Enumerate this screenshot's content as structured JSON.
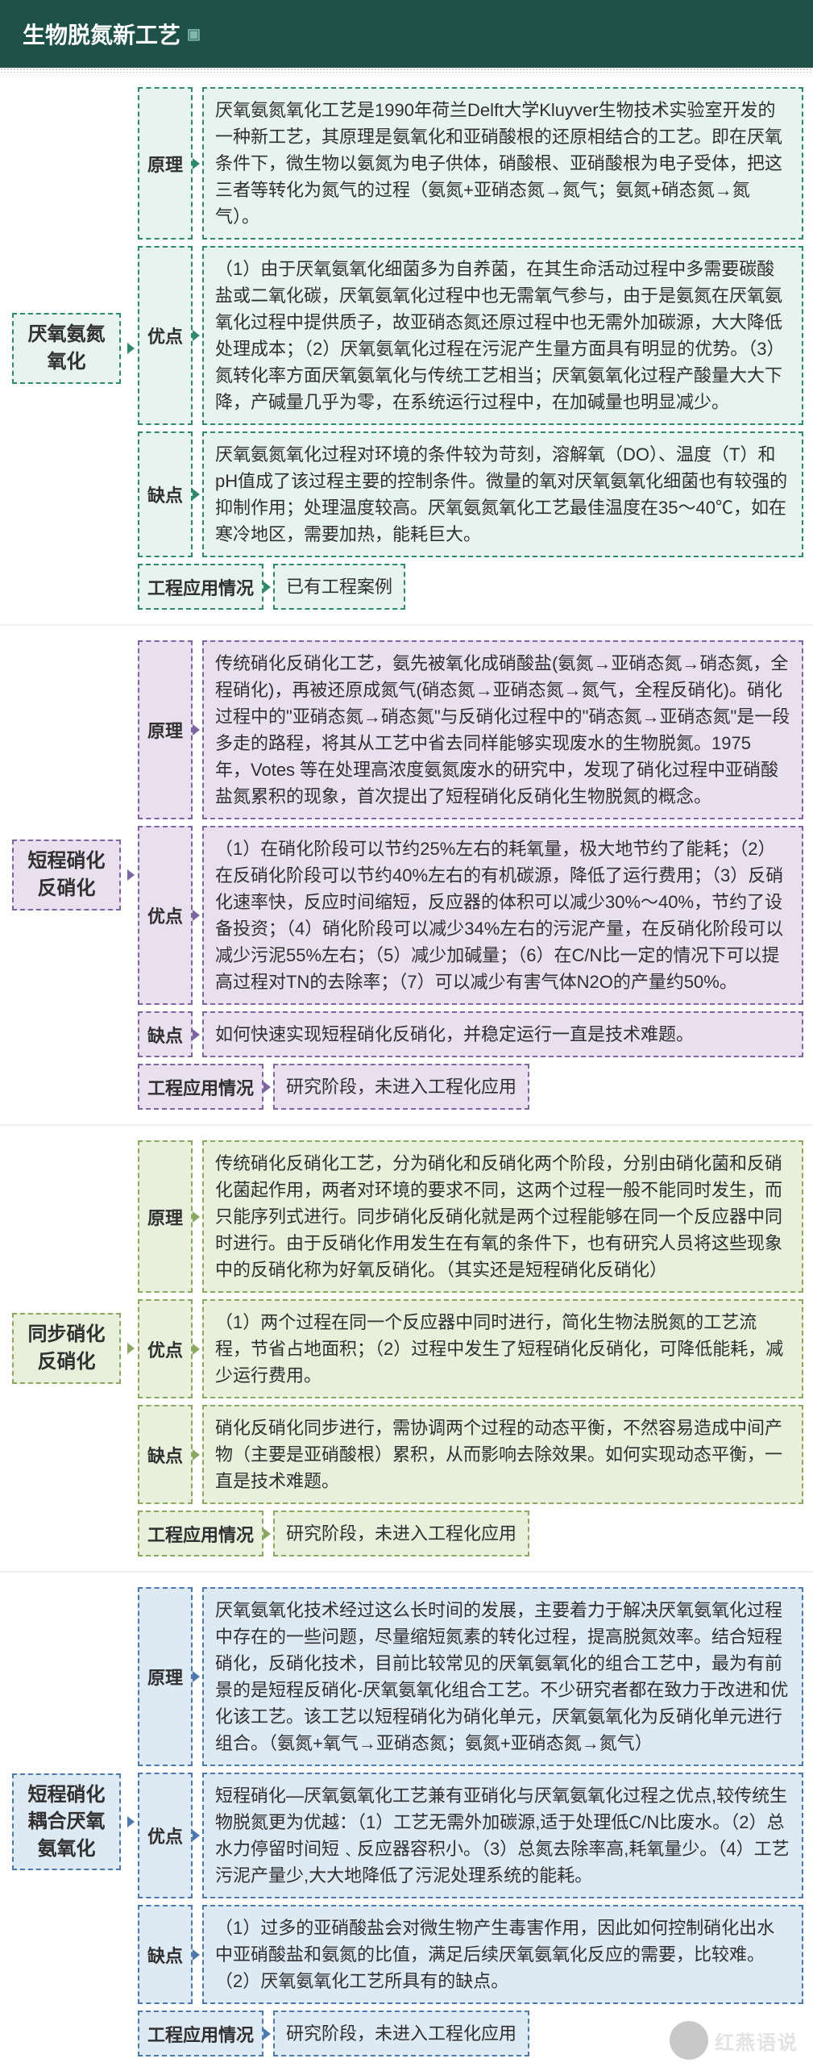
{
  "header": {
    "title": "生物脱氮新工艺"
  },
  "colors": {
    "header_bg": "#1e5147",
    "sec1": {
      "bg": "#e6f3ee",
      "border": "#2e8a6b",
      "arrow": "#2e8a6b"
    },
    "sec2": {
      "bg": "#e8e0ee",
      "border": "#7d65a3",
      "arrow": "#7d65a3"
    },
    "sec3": {
      "bg": "#e8f0dc",
      "border": "#8aa860",
      "arrow": "#8aa860"
    },
    "sec4": {
      "bg": "#dde9f3",
      "border": "#4d79b0",
      "arrow": "#4d79b0"
    }
  },
  "sections": [
    {
      "id": "anammox",
      "title": "厌氧氨氮\n氧化",
      "rows": [
        {
          "label": "原理",
          "content": "厌氧氨氮氧化工艺是1990年荷兰Delft大学Kluyver生物技术实验室开发的一种新工艺，其原理是氨氧化和亚硝酸根的还原相结合的工艺。即在厌氧条件下，微生物以氨氮为电子供体，硝酸根、亚硝酸根为电子受体，把这三者等转化为氮气的过程（氨氮+亚硝态氮→氮气；氨氮+硝态氮→氮气）。"
        },
        {
          "label": "优点",
          "content": "（1）由于厌氧氨氧化细菌多为自养菌，在其生命活动过程中多需要碳酸盐或二氧化碳，厌氧氨氧化过程中也无需氧气参与，由于是氨氮在厌氧氨氧化过程中提供质子，故亚硝态氮还原过程中也无需外加碳源，大大降低处理成本；（2）厌氧氨氧化过程在污泥产生量方面具有明显的优势。（3）氮转化率方面厌氧氨氧化与传统工艺相当；厌氧氨氧化过程产酸量大大下降，产碱量几乎为零，在系统运行过程中，在加碱量也明显减少。"
        },
        {
          "label": "缺点",
          "content": "厌氧氨氮氧化过程对环境的条件较为苛刻，溶解氧（DO）、温度（T）和pH值成了该过程主要的控制条件。微量的氧对厌氧氨氧化细菌也有较强的抑制作用；处理温度较高。厌氧氨氮氧化工艺最佳温度在35～40℃，如在寒冷地区，需要加热，能耗巨大。"
        },
        {
          "label": "工程应用情况",
          "content": "已有工程案例",
          "inline": true
        }
      ]
    },
    {
      "id": "shortcut-nd",
      "title": "短程硝化\n反硝化",
      "rows": [
        {
          "label": "原理",
          "content": "传统硝化反硝化工艺，氨先被氧化成硝酸盐(氨氮→亚硝态氮→硝态氮，全程硝化)，再被还原成氮气(硝态氮→亚硝态氮→氮气，全程反硝化)。硝化过程中的\"亚硝态氮→硝态氮\"与反硝化过程中的\"硝态氮→亚硝态氮\"是一段多走的路程，将其从工艺中省去同样能够实现废水的生物脱氮。1975 年，Votes 等在处理高浓度氨氮废水的研究中，发现了硝化过程中亚硝酸盐氮累积的现象，首次提出了短程硝化反硝化生物脱氮的概念。"
        },
        {
          "label": "优点",
          "content": "（1）在硝化阶段可以节约25%左右的耗氧量，极大地节约了能耗；（2）在反硝化阶段可以节约40%左右的有机碳源，降低了运行费用；（3）反硝化速率快，反应时间缩短，反应器的体积可以减少30%～40%，节约了设备投资；（4）硝化阶段可以减少34%左右的污泥产量，在反硝化阶段可以减少污泥55%左右；（5）减少加碱量；（6）在C/N比一定的情况下可以提高过程对TN的去除率；（7）可以减少有害气体N2O的产量约50%。"
        },
        {
          "label": "缺点",
          "content": "如何快速实现短程硝化反硝化，并稳定运行一直是技术难题。"
        },
        {
          "label": "工程应用情况",
          "content": "研究阶段，未进入工程化应用",
          "inline": true
        }
      ]
    },
    {
      "id": "sync-nd",
      "title": "同步硝化\n反硝化",
      "rows": [
        {
          "label": "原理",
          "content": "传统硝化反硝化工艺，分为硝化和反硝化两个阶段，分别由硝化菌和反硝化菌起作用，两者对环境的要求不同，这两个过程一般不能同时发生，而只能序列式进行。同步硝化反硝化就是两个过程能够在同一个反应器中同时进行。由于反硝化作用发生在有氧的条件下，也有研究人员将这些现象中的反硝化称为好氧反硝化。（其实还是短程硝化反硝化）"
        },
        {
          "label": "优点",
          "content": "（1）两个过程在同一个反应器中同时进行，简化生物法脱氮的工艺流程，节省占地面积；（2）过程中发生了短程硝化反硝化，可降低能耗，减少运行费用。"
        },
        {
          "label": "缺点",
          "content": "硝化反硝化同步进行，需协调两个过程的动态平衡，不然容易造成中间产物（主要是亚硝酸根）累积，从而影响去除效果。如何实现动态平衡，一直是技术难题。"
        },
        {
          "label": "工程应用情况",
          "content": "研究阶段，未进入工程化应用",
          "inline": true
        }
      ]
    },
    {
      "id": "shortcut-anammox",
      "title": "短程硝化\n耦合厌氧\n氨氧化",
      "rows": [
        {
          "label": "原理",
          "content": "厌氧氨氧化技术经过这么长时间的发展，主要着力于解决厌氧氨氧化过程中存在的一些问题，尽量缩短氮素的转化过程，提高脱氮效率。结合短程硝化，反硝化技术，目前比较常见的厌氧氨氧化的组合工艺中，最为有前景的是短程反硝化-厌氧氨氧化组合工艺。不少研究者都在致力于改进和优化该工艺。该工艺以短程硝化为硝化单元，厌氧氨氧化为反硝化单元进行组合。（氨氮+氧气→亚硝态氮；氨氮+亚硝态氮→氮气）"
        },
        {
          "label": "优点",
          "content": "短程硝化—厌氧氨氧化工艺兼有亚硝化与厌氧氨氧化过程之优点,较传统生物脱氮更为优越：（1）工艺无需外加碳源,适于处理低C/N比废水。（2）总水力停留时间短﹑反应器容积小。（3）总氮去除率高,耗氧量少。（4）工艺污泥产量少,大大地降低了污泥处理系统的能耗。"
        },
        {
          "label": "缺点",
          "content": "（1）过多的亚硝酸盐会对微生物产生毒害作用，因此如何控制硝化出水中亚硝酸盐和氨氮的比值，满足后续厌氧氨氧化反应的需要，比较难。（2）厌氧氨氧化工艺所具有的缺点。"
        },
        {
          "label": "工程应用情况",
          "content": "研究阶段，未进入工程化应用",
          "inline": true
        }
      ]
    }
  ],
  "watermark": "红燕语说"
}
